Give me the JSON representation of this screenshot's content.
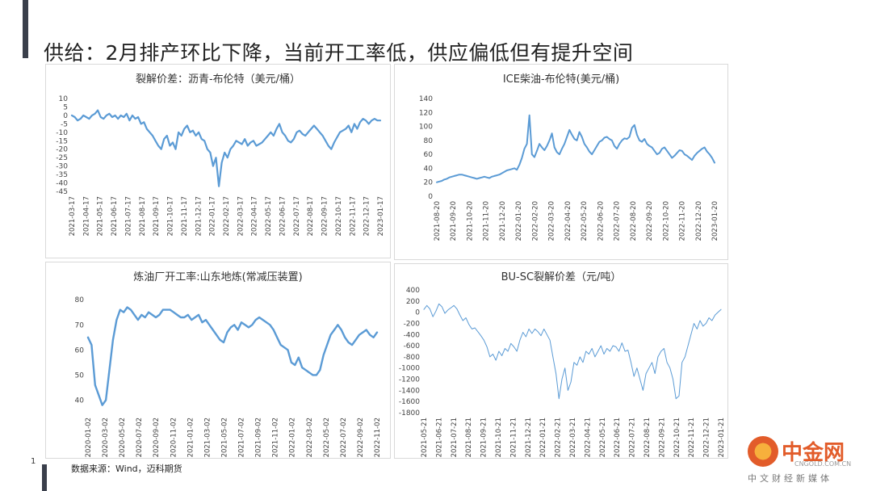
{
  "slide": {
    "title": "供给：2月排产环比下降，当前开工率低，供应偏低但有提升空间",
    "source": "数据来源：Wind，迈科期货",
    "page_number": "1",
    "line_color": "#5b9bd5"
  },
  "watermark": {
    "cn": "中金网",
    "url": "CNGOLD.COM.CN",
    "sub": "中文财经新媒体"
  },
  "chart_data": [
    {
      "type": "line",
      "title": "裂解价差：沥青-布伦特（美元/桶）",
      "x_ticks": [
        "2021-03-17",
        "2021-04-17",
        "2021-05-17",
        "2021-06-17",
        "2021-07-17",
        "2021-08-17",
        "2021-09-17",
        "2021-10-17",
        "2021-11-17",
        "2021-12-17",
        "2022-01-17",
        "2022-02-17",
        "2022-03-17",
        "2022-04-17",
        "2022-05-17",
        "2022-06-17",
        "2022-07-17",
        "2022-08-17",
        "2022-09-17",
        "2022-10-17",
        "2022-11-17",
        "2022-12-17",
        "2023-01-17"
      ],
      "y_ticks": [
        10,
        5,
        0,
        -5,
        -10,
        -15,
        -20,
        -25,
        -30,
        -35,
        -40,
        -45
      ],
      "ylim": [
        -45,
        10
      ],
      "series": [
        {
          "values": [
            0,
            -1,
            -3,
            -2,
            0,
            -1,
            -2,
            0,
            1,
            3,
            -1,
            -2,
            0,
            1,
            -1,
            0,
            -2,
            0,
            -1,
            1,
            -3,
            0,
            -2,
            -1,
            -5,
            -4,
            -8,
            -10,
            -12,
            -15,
            -18,
            -20,
            -14,
            -12,
            -18,
            -16,
            -20,
            -10,
            -12,
            -8,
            -6,
            -10,
            -9,
            -12,
            -10,
            -14,
            -15,
            -20,
            -22,
            -30,
            -25,
            -42,
            -28,
            -22,
            -25,
            -20,
            -18,
            -15,
            -16,
            -17,
            -14,
            -18,
            -16,
            -15,
            -18,
            -17,
            -16,
            -14,
            -12,
            -10,
            -12,
            -8,
            -5,
            -10,
            -12,
            -15,
            -16,
            -14,
            -10,
            -9,
            -11,
            -12,
            -10,
            -8,
            -6,
            -8,
            -10,
            -12,
            -15,
            -18,
            -20,
            -16,
            -13,
            -10,
            -9,
            -8,
            -6,
            -10,
            -5,
            -8,
            -4,
            -2,
            -3,
            -5,
            -3,
            -2,
            -3,
            -3
          ]
        }
      ]
    },
    {
      "type": "line",
      "title": "ICE柴油-布伦特(美元/桶)",
      "x_ticks": [
        "2021-08-20",
        "2021-09-20",
        "2021-10-20",
        "2021-11-20",
        "2021-12-20",
        "2022-01-20",
        "2022-02-20",
        "2022-03-20",
        "2022-04-20",
        "2022-05-20",
        "2022-06-20",
        "2022-07-20",
        "2022-08-20",
        "2022-09-20",
        "2022-10-20",
        "2022-11-20",
        "2022-12-20",
        "2023-01-20"
      ],
      "y_ticks": [
        140,
        120,
        100,
        80,
        60,
        40,
        20,
        0
      ],
      "ylim": [
        0,
        140
      ],
      "series": [
        {
          "values": [
            20,
            21,
            22,
            24,
            25,
            27,
            28,
            29,
            30,
            31,
            31,
            30,
            29,
            28,
            27,
            26,
            25,
            26,
            27,
            28,
            27,
            26,
            28,
            29,
            30,
            31,
            33,
            35,
            37,
            38,
            39,
            40,
            38,
            45,
            55,
            68,
            75,
            116,
            60,
            56,
            65,
            75,
            70,
            66,
            72,
            80,
            90,
            70,
            63,
            60,
            68,
            75,
            85,
            95,
            88,
            82,
            80,
            92,
            85,
            75,
            70,
            64,
            60,
            66,
            72,
            78,
            80,
            84,
            85,
            82,
            80,
            72,
            68,
            75,
            80,
            83,
            82,
            85,
            98,
            102,
            88,
            80,
            78,
            82,
            75,
            72,
            70,
            65,
            60,
            62,
            68,
            70,
            65,
            60,
            55,
            58,
            62,
            66,
            65,
            60,
            58,
            55,
            52,
            58,
            62,
            65,
            68,
            70,
            64,
            60,
            55,
            48
          ]
        }
      ]
    },
    {
      "type": "line",
      "title": "炼油厂开工率:山东地炼(常减压装置)",
      "x_ticks": [
        "2020-01-02",
        "2020-03-02",
        "2020-05-02",
        "2020-07-02",
        "2020-09-02",
        "2020-11-02",
        "2021-01-02",
        "2021-03-02",
        "2021-05-02",
        "2021-07-02",
        "2021-09-02",
        "2021-11-02",
        "2022-01-02",
        "2022-03-02",
        "2022-05-02",
        "2022-07-02",
        "2022-09-02",
        "2022-11-02"
      ],
      "y_ticks": [
        80,
        70,
        60,
        50,
        40
      ],
      "ylim": [
        35,
        82
      ],
      "series": [
        {
          "values": [
            65,
            62,
            46,
            42,
            38,
            40,
            52,
            64,
            72,
            76,
            75,
            77,
            76,
            74,
            72,
            74,
            73,
            75,
            74,
            73,
            74,
            76,
            76,
            76,
            75,
            74,
            73,
            73,
            74,
            72,
            73,
            74,
            71,
            72,
            70,
            68,
            66,
            64,
            63,
            67,
            69,
            70,
            68,
            71,
            70,
            69,
            70,
            72,
            73,
            72,
            71,
            70,
            68,
            65,
            62,
            61,
            60,
            55,
            54,
            57,
            53,
            52,
            51,
            50,
            50,
            52,
            58,
            62,
            66,
            68,
            70,
            68,
            65,
            63,
            62,
            64,
            66,
            67,
            68,
            66,
            65,
            67
          ]
        }
      ]
    },
    {
      "type": "line",
      "title": "BU-SC裂解价差（元/吨）",
      "x_ticks": [
        "2021-05-21",
        "2021-06-21",
        "2021-07-21",
        "2021-08-21",
        "2021-09-21",
        "2021-10-21",
        "2021-11-21",
        "2021-12-21",
        "2022-01-21",
        "2022-02-21",
        "2022-03-21",
        "2022-04-21",
        "2022-05-21",
        "2022-06-21",
        "2022-07-21",
        "2022-08-21",
        "2022-09-21",
        "2022-10-21",
        "2022-11-21",
        "2022-12-21",
        "2023-01-21"
      ],
      "y_ticks": [
        400,
        200,
        0,
        -200,
        -400,
        -600,
        -800,
        -1000,
        -1200,
        -1400,
        -1600,
        -1800
      ],
      "ylim": [
        -1800,
        400
      ],
      "series": [
        {
          "values": [
            50,
            120,
            60,
            -80,
            20,
            150,
            100,
            -20,
            40,
            80,
            120,
            60,
            -50,
            -150,
            -100,
            -220,
            -300,
            -280,
            -350,
            -420,
            -500,
            -620,
            -800,
            -750,
            -860,
            -700,
            -780,
            -650,
            -700,
            -560,
            -620,
            -700,
            -500,
            -360,
            -440,
            -300,
            -380,
            -300,
            -350,
            -420,
            -300,
            -400,
            -500,
            -800,
            -1100,
            -1550,
            -1200,
            -1000,
            -1400,
            -1250,
            -900,
            -950,
            -800,
            -900,
            -700,
            -750,
            -650,
            -800,
            -700,
            -600,
            -750,
            -650,
            -700,
            -600,
            -620,
            -700,
            -550,
            -700,
            -680,
            -900,
            -1150,
            -1000,
            -1200,
            -1400,
            -1100,
            -1000,
            -900,
            -1100,
            -800,
            -700,
            -650,
            -900,
            -1000,
            -1200,
            -1550,
            -1500,
            -900,
            -800,
            -600,
            -400,
            -200,
            -300,
            -150,
            -250,
            -200,
            -100,
            -150,
            -50,
            0,
            50
          ]
        }
      ]
    }
  ]
}
